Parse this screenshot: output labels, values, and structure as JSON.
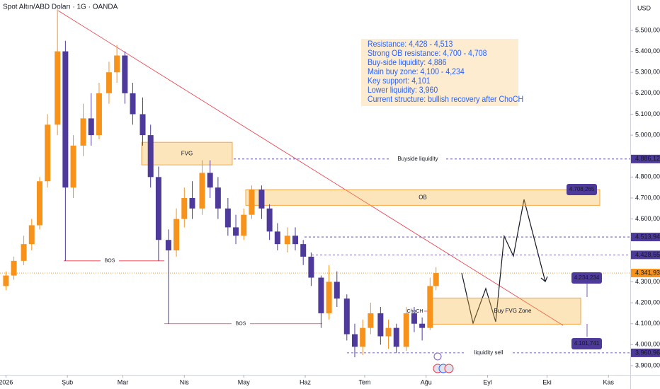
{
  "chart_data": {
    "type": "candlestick",
    "title": "Spot Altın/ABD Doları · 1G · OANDA",
    "currency": "USD",
    "up_color": "#f7931a",
    "down_color": "#4e3a9a",
    "ylim": [
      3856,
      5645
    ],
    "yticks": [
      {
        "value": 5500,
        "label": "5.500,000"
      },
      {
        "value": 5400,
        "label": "5.400,000"
      },
      {
        "value": 5300,
        "label": "5.300,000"
      },
      {
        "value": 5200,
        "label": "5.200,000"
      },
      {
        "value": 5100,
        "label": "5.100,000"
      },
      {
        "value": 5000,
        "label": "5.000,000"
      },
      {
        "value": 4800,
        "label": "4.800,000"
      },
      {
        "value": 4700,
        "label": "4.700,000"
      },
      {
        "value": 4600,
        "label": "4.600,000"
      },
      {
        "value": 4300,
        "label": "4.300,000"
      },
      {
        "value": 4200,
        "label": "4.200,000"
      },
      {
        "value": 4100,
        "label": "4.100,000"
      },
      {
        "value": 4000,
        "label": "4.000,000"
      },
      {
        "value": 3900,
        "label": "3.900,000"
      }
    ],
    "xlim": [
      -3,
      315
    ],
    "xticks": [
      {
        "value": 0,
        "label": "2026"
      },
      {
        "value": 31,
        "label": "Şub"
      },
      {
        "value": 59,
        "label": "Mar"
      },
      {
        "value": 90,
        "label": "Nis"
      },
      {
        "value": 120,
        "label": "May"
      },
      {
        "value": 151,
        "label": "Haz"
      },
      {
        "value": 181,
        "label": "Tem"
      },
      {
        "value": 212,
        "label": "Ağu"
      },
      {
        "value": 243,
        "label": "Eyl"
      },
      {
        "value": 273,
        "label": "Eki"
      },
      {
        "value": 304,
        "label": "Kas"
      }
    ],
    "x": [
      0,
      4,
      9,
      13,
      17,
      21,
      26,
      30,
      34,
      39,
      43,
      47,
      52,
      56,
      60,
      64,
      69,
      73,
      77,
      82,
      86,
      90,
      94,
      99,
      103,
      107,
      112,
      116,
      120,
      124,
      129,
      133,
      137,
      142,
      146,
      150,
      154,
      159,
      163,
      167,
      172,
      176,
      180,
      184,
      189,
      193,
      197,
      202,
      206,
      210,
      214,
      217
    ],
    "open": [
      4280,
      4330,
      4400,
      4480,
      4570,
      4780,
      5050,
      5400,
      4750,
      4950,
      5080,
      5000,
      5200,
      5300,
      5380,
      5200,
      5100,
      5000,
      4800,
      4500,
      4450,
      4600,
      4700,
      4650,
      4820,
      4750,
      4650,
      4560,
      4520,
      4620,
      4740,
      4650,
      4540,
      4480,
      4520,
      4480,
      4420,
      4320,
      4150,
      4300,
      4220,
      4050,
      3990,
      4080,
      4150,
      4040,
      4080,
      3990,
      4150,
      4100,
      4080,
      4280
    ],
    "high": [
      4350,
      4420,
      4520,
      4600,
      4800,
      5100,
      5600,
      5450,
      5000,
      5150,
      5200,
      5250,
      5350,
      5430,
      5400,
      5250,
      5180,
      5050,
      4850,
      4550,
      4650,
      4750,
      4780,
      4880,
      4880,
      4800,
      4700,
      4620,
      4650,
      4760,
      4760,
      4670,
      4580,
      4560,
      4560,
      4500,
      4440,
      4330,
      4380,
      4350,
      4240,
      4100,
      4120,
      4200,
      4180,
      4120,
      4100,
      4180,
      4180,
      4130,
      4320,
      4370
    ],
    "low": [
      4260,
      4310,
      4380,
      4450,
      4550,
      4750,
      5000,
      4400,
      4700,
      4900,
      4950,
      4980,
      5150,
      5250,
      5150,
      5050,
      4950,
      4750,
      4400,
      4100,
      4420,
      4560,
      4600,
      4620,
      4700,
      4600,
      4520,
      4480,
      4500,
      4600,
      4600,
      4500,
      4450,
      4440,
      4450,
      4380,
      4280,
      4080,
      4120,
      4180,
      4020,
      3940,
      3950,
      4050,
      4000,
      3980,
      3960,
      3970,
      4060,
      4020,
      4070,
      4260
    ],
    "close": [
      4330,
      4400,
      4480,
      4570,
      4780,
      5050,
      5400,
      4750,
      4950,
      5080,
      5000,
      5200,
      5300,
      5380,
      5200,
      5100,
      5000,
      4800,
      4500,
      4450,
      4600,
      4700,
      4650,
      4820,
      4750,
      4650,
      4560,
      4520,
      4620,
      4740,
      4650,
      4540,
      4480,
      4520,
      4480,
      4420,
      4320,
      4150,
      4300,
      4220,
      4050,
      3990,
      4080,
      4150,
      4040,
      4080,
      3990,
      4150,
      4100,
      4080,
      4280,
      4341.935
    ],
    "current_price": {
      "value": 4341.935,
      "label": "4.341,935"
    },
    "levels": [
      {
        "value": 4886.122,
        "label": "4.886,122",
        "text": "Buyside liquidity"
      },
      {
        "value": 4513.942,
        "label": "4.513,942"
      },
      {
        "value": 4428.557,
        "label": "4.428,557"
      },
      {
        "value": 3960.96,
        "label": "3.960,960",
        "text": "liquidity sell"
      }
    ],
    "zones": [
      {
        "label": "FVG",
        "from": 4858,
        "to": 4966
      },
      {
        "label": "OB",
        "from": 4665,
        "to": 4740
      },
      {
        "label": "Buy FVG Zone",
        "from": 4098,
        "to": 4223
      }
    ],
    "structure": [
      {
        "value": 4400,
        "text": "BOS"
      },
      {
        "value": 4100,
        "text": "BOS"
      },
      {
        "value": 4160,
        "text": "ChoCH"
      }
    ],
    "callouts": [
      "4.708,265",
      "4.234,234",
      "4.101,741"
    ],
    "annotations": [
      "Resistance: 4,428 - 4,513",
      "Strong OB resistance: 4,700 - 4,708",
      "Buy-side liquidity: 4,886",
      "Main buy zone: 4,100 - 4,234",
      "Key support: 4,101",
      "Lower liquidity: 3,960",
      "Current structure: bullish recovery after ChoCH"
    ]
  }
}
